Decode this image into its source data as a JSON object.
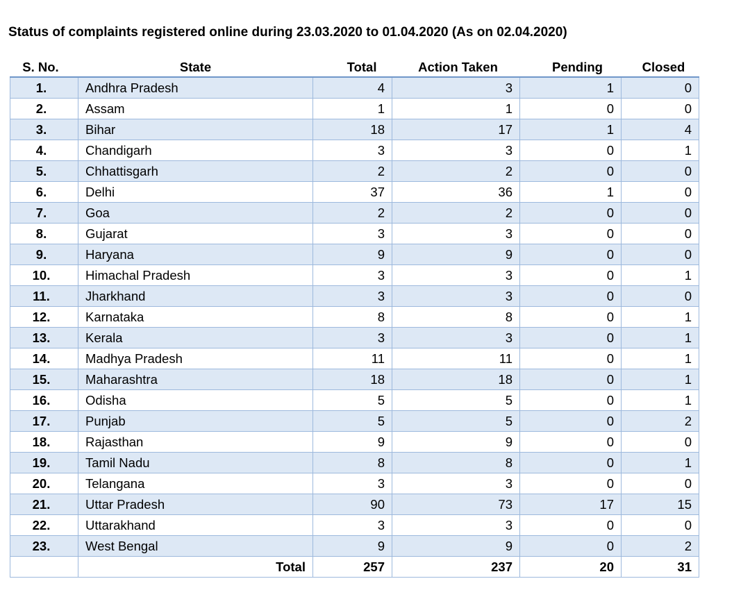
{
  "document": {
    "title": "Status of complaints registered online during 23.03.2020 to 01.04.2020 (As on 02.04.2020)"
  },
  "table": {
    "headers": {
      "sno": "S. No.",
      "state": "State",
      "total": "Total",
      "action_taken": "Action Taken",
      "pending": "Pending",
      "closed": "Closed"
    },
    "rows": [
      {
        "sno": "1.",
        "state": "Andhra Pradesh",
        "total": "4",
        "action_taken": "3",
        "pending": "1",
        "closed": "0"
      },
      {
        "sno": "2.",
        "state": "Assam",
        "total": "1",
        "action_taken": "1",
        "pending": "0",
        "closed": "0"
      },
      {
        "sno": "3.",
        "state": "Bihar",
        "total": "18",
        "action_taken": "17",
        "pending": "1",
        "closed": "4"
      },
      {
        "sno": "4.",
        "state": "Chandigarh",
        "total": "3",
        "action_taken": "3",
        "pending": "0",
        "closed": "1"
      },
      {
        "sno": "5.",
        "state": "Chhattisgarh",
        "total": "2",
        "action_taken": "2",
        "pending": "0",
        "closed": "0"
      },
      {
        "sno": "6.",
        "state": "Delhi",
        "total": "37",
        "action_taken": "36",
        "pending": "1",
        "closed": "0"
      },
      {
        "sno": "7.",
        "state": "Goa",
        "total": "2",
        "action_taken": "2",
        "pending": "0",
        "closed": "0"
      },
      {
        "sno": "8.",
        "state": "Gujarat",
        "total": "3",
        "action_taken": "3",
        "pending": "0",
        "closed": "0"
      },
      {
        "sno": "9.",
        "state": "Haryana",
        "total": "9",
        "action_taken": "9",
        "pending": "0",
        "closed": "0"
      },
      {
        "sno": "10.",
        "state": "Himachal Pradesh",
        "total": "3",
        "action_taken": "3",
        "pending": "0",
        "closed": "1"
      },
      {
        "sno": "11.",
        "state": "Jharkhand",
        "total": "3",
        "action_taken": "3",
        "pending": "0",
        "closed": "0"
      },
      {
        "sno": "12.",
        "state": "Karnataka",
        "total": "8",
        "action_taken": "8",
        "pending": "0",
        "closed": "1"
      },
      {
        "sno": "13.",
        "state": "Kerala",
        "total": "3",
        "action_taken": "3",
        "pending": "0",
        "closed": "1"
      },
      {
        "sno": "14.",
        "state": "Madhya Pradesh",
        "total": "11",
        "action_taken": "11",
        "pending": "0",
        "closed": "1"
      },
      {
        "sno": "15.",
        "state": "Maharashtra",
        "total": "18",
        "action_taken": "18",
        "pending": "0",
        "closed": "1"
      },
      {
        "sno": "16.",
        "state": "Odisha",
        "total": "5",
        "action_taken": "5",
        "pending": "0",
        "closed": "1"
      },
      {
        "sno": "17.",
        "state": "Punjab",
        "total": "5",
        "action_taken": "5",
        "pending": "0",
        "closed": "2"
      },
      {
        "sno": "18.",
        "state": "Rajasthan",
        "total": "9",
        "action_taken": "9",
        "pending": "0",
        "closed": "0"
      },
      {
        "sno": "19.",
        "state": "Tamil Nadu",
        "total": "8",
        "action_taken": "8",
        "pending": "0",
        "closed": "1"
      },
      {
        "sno": "20.",
        "state": "Telangana",
        "total": "3",
        "action_taken": "3",
        "pending": "0",
        "closed": "0"
      },
      {
        "sno": "21.",
        "state": "Uttar Pradesh",
        "total": "90",
        "action_taken": "73",
        "pending": "17",
        "closed": "15"
      },
      {
        "sno": "22.",
        "state": "Uttarakhand",
        "total": "3",
        "action_taken": "3",
        "pending": "0",
        "closed": "0"
      },
      {
        "sno": "23.",
        "state": "West Bengal",
        "total": "9",
        "action_taken": "9",
        "pending": "0",
        "closed": "2"
      }
    ],
    "totals": {
      "label": "Total",
      "total": "257",
      "action_taken": "237",
      "pending": "20",
      "closed": "31"
    }
  },
  "colors": {
    "band": "#dde8f5",
    "border": "#9db9dd",
    "header_rule": "#6f96c9"
  }
}
